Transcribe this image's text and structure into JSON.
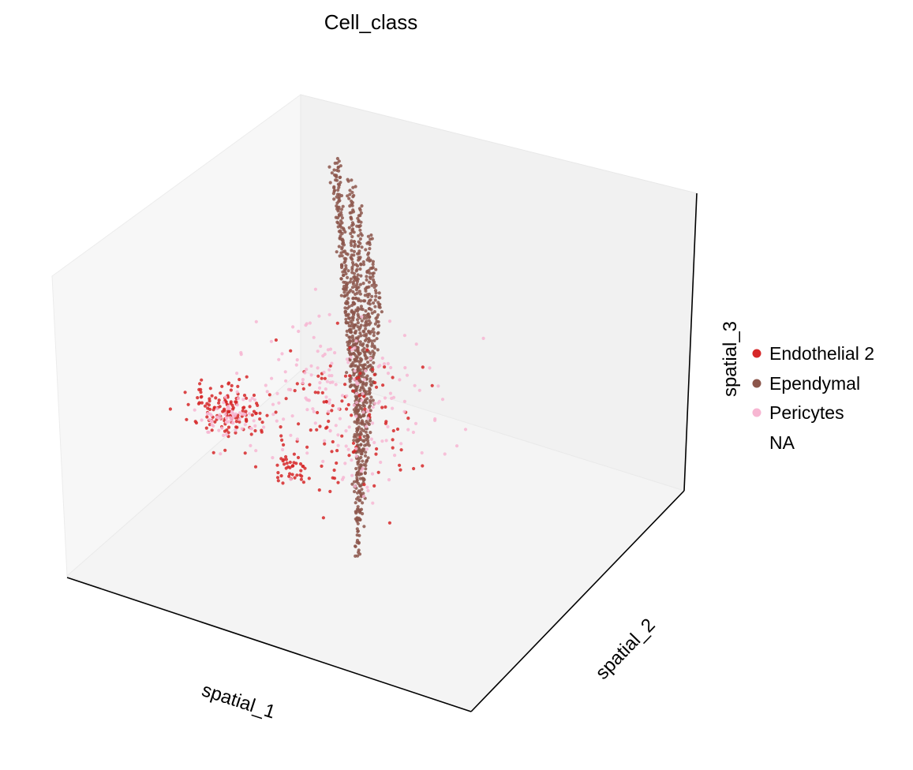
{
  "chart_data": {
    "type": "scatter",
    "projection": "3d",
    "title": "Cell_class",
    "xlabel": "spatial_1",
    "ylabel": "spatial_2",
    "zlabel": "spatial_3",
    "grid": false,
    "legend_position": "right",
    "legend": [
      {
        "name": "Endothelial 2",
        "color": "#d62728"
      },
      {
        "name": "Ependymal",
        "color": "#8c564b"
      },
      {
        "name": "Pericytes",
        "color": "#f7b6d2"
      },
      {
        "name": "NA",
        "color": "#ffffff"
      }
    ],
    "series": [
      {
        "name": "Ependymal",
        "color": "#8c564b",
        "clusters": [
          {
            "start": [
              0.62,
              0.18,
              0.22
            ],
            "end": [
              0.28,
              0.88,
              0.46
            ],
            "n": 140,
            "jitter": 0.012
          },
          {
            "start": [
              0.6,
              0.22,
              0.3
            ],
            "end": [
              0.26,
              0.9,
              0.54
            ],
            "n": 140,
            "jitter": 0.012
          },
          {
            "start": [
              0.58,
              0.26,
              0.38
            ],
            "end": [
              0.24,
              0.92,
              0.62
            ],
            "n": 140,
            "jitter": 0.012
          },
          {
            "start": [
              0.56,
              0.3,
              0.46
            ],
            "end": [
              0.22,
              0.92,
              0.7
            ],
            "n": 140,
            "jitter": 0.012
          },
          {
            "start": [
              0.54,
              0.34,
              0.54
            ],
            "end": [
              0.2,
              0.92,
              0.78
            ],
            "n": 140,
            "jitter": 0.012
          },
          {
            "start": [
              0.52,
              0.36,
              0.62
            ],
            "end": [
              0.18,
              0.9,
              0.86
            ],
            "n": 120,
            "jitter": 0.012
          },
          {
            "start": [
              0.5,
              0.4,
              0.7
            ],
            "end": [
              0.2,
              0.85,
              0.88
            ],
            "n": 80,
            "jitter": 0.015
          }
        ]
      },
      {
        "name": "Endothelial 2",
        "color": "#d62728",
        "clusters": [
          {
            "center": [
              0.3,
              0.2,
              0.55
            ],
            "spread": [
              0.12,
              0.1,
              0.1
            ],
            "n": 130
          },
          {
            "center": [
              0.45,
              0.4,
              0.45
            ],
            "spread": [
              0.3,
              0.3,
              0.3
            ],
            "n": 120
          },
          {
            "center": [
              0.4,
              0.28,
              0.35
            ],
            "spread": [
              0.08,
              0.06,
              0.05
            ],
            "n": 40
          }
        ]
      },
      {
        "name": "Pericytes",
        "color": "#f7b6d2",
        "clusters": [
          {
            "center": [
              0.45,
              0.45,
              0.5
            ],
            "spread": [
              0.32,
              0.32,
              0.32
            ],
            "n": 190
          },
          {
            "center": [
              0.32,
              0.18,
              0.55
            ],
            "spread": [
              0.1,
              0.08,
              0.08
            ],
            "n": 60
          }
        ]
      }
    ]
  }
}
